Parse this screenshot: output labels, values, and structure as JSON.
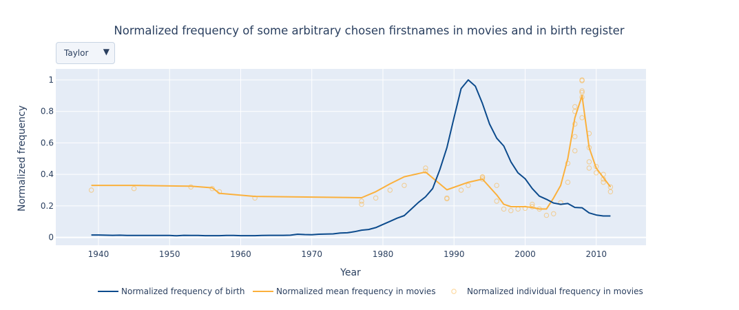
{
  "chart_data": {
    "type": "line",
    "title": "Normalized frequency of some arbitrary chosen firstnames in movies and in birth register",
    "xlabel": "Year",
    "ylabel": "Normalized frequency",
    "xlim": [
      1934,
      2017
    ],
    "ylim": [
      -0.05,
      1.07
    ],
    "xticks": [
      1940,
      1950,
      1960,
      1970,
      1980,
      1990,
      2000,
      2010
    ],
    "yticks": [
      0,
      0.2,
      0.4,
      0.6,
      0.8,
      1
    ],
    "ytick_labels": [
      "0",
      "0.2",
      "0.4",
      "0.6",
      "0.8",
      "1"
    ],
    "grid": true,
    "legend_position": "bottom",
    "dropdown": {
      "selected": "Taylor"
    },
    "series": [
      {
        "name": "Normalized frequency of birth",
        "mode": "line",
        "color": "#0b4a8c",
        "x": [
          1939,
          1940,
          1941,
          1942,
          1943,
          1944,
          1945,
          1946,
          1947,
          1948,
          1949,
          1950,
          1951,
          1952,
          1953,
          1954,
          1955,
          1956,
          1957,
          1958,
          1959,
          1960,
          1961,
          1962,
          1963,
          1964,
          1965,
          1966,
          1967,
          1968,
          1969,
          1970,
          1971,
          1972,
          1973,
          1974,
          1975,
          1976,
          1977,
          1978,
          1979,
          1980,
          1981,
          1982,
          1983,
          1984,
          1985,
          1986,
          1987,
          1988,
          1989,
          1990,
          1991,
          1992,
          1993,
          1994,
          1995,
          1996,
          1997,
          1998,
          1999,
          2000,
          2001,
          2002,
          2003,
          2004,
          2005,
          2006,
          2007,
          2008,
          2009,
          2010,
          2011,
          2012
        ],
        "y": [
          0.015,
          0.015,
          0.014,
          0.013,
          0.014,
          0.012,
          0.012,
          0.012,
          0.012,
          0.012,
          0.012,
          0.012,
          0.01,
          0.013,
          0.012,
          0.012,
          0.011,
          0.011,
          0.011,
          0.012,
          0.012,
          0.011,
          0.011,
          0.011,
          0.012,
          0.013,
          0.013,
          0.013,
          0.014,
          0.02,
          0.018,
          0.017,
          0.02,
          0.021,
          0.022,
          0.028,
          0.029,
          0.036,
          0.046,
          0.05,
          0.062,
          0.082,
          0.102,
          0.122,
          0.138,
          0.18,
          0.222,
          0.258,
          0.31,
          0.43,
          0.57,
          0.76,
          0.945,
          1.0,
          0.96,
          0.85,
          0.72,
          0.63,
          0.58,
          0.48,
          0.41,
          0.372,
          0.31,
          0.262,
          0.242,
          0.218,
          0.21,
          0.215,
          0.19,
          0.188,
          0.155,
          0.142,
          0.136,
          0.136
        ]
      },
      {
        "name": "Normalized mean frequency in movies",
        "mode": "line",
        "color": "#fbb03b",
        "x": [
          1939,
          1945,
          1953,
          1956,
          1957,
          1962,
          1977,
          1979,
          1981,
          1983,
          1986,
          1989,
          1992,
          1994,
          1996,
          1997,
          1998,
          1999,
          2000,
          2001,
          2002,
          2003,
          2004,
          2005,
          2006,
          2007,
          2008,
          2009,
          2010,
          2011,
          2012
        ],
        "y": [
          0.33,
          0.33,
          0.325,
          0.315,
          0.28,
          0.26,
          0.252,
          0.29,
          0.34,
          0.385,
          0.415,
          0.302,
          0.35,
          0.37,
          0.27,
          0.21,
          0.195,
          0.195,
          0.195,
          0.19,
          0.18,
          0.18,
          0.25,
          0.33,
          0.5,
          0.76,
          0.9,
          0.57,
          0.44,
          0.38,
          0.32
        ]
      },
      {
        "name": "Normalized individual frequency in movies",
        "mode": "markers",
        "color": "#fbb03b",
        "x": [
          1939,
          1945,
          1953,
          1956,
          1957,
          1962,
          1977,
          1977,
          1979,
          1981,
          1983,
          1986,
          1986,
          1989,
          1989,
          1991,
          1992,
          1994,
          1994,
          1994,
          1996,
          1996,
          1997,
          1998,
          1999,
          2000,
          2001,
          2001,
          2002,
          2003,
          2004,
          2005,
          2006,
          2006,
          2007,
          2007,
          2007,
          2007,
          2007,
          2008,
          2008,
          2008,
          2008,
          2008,
          2008,
          2009,
          2009,
          2009,
          2009,
          2010,
          2010,
          2011,
          2011,
          2011,
          2012,
          2012
        ],
        "y": [
          0.3,
          0.31,
          0.32,
          0.31,
          0.29,
          0.25,
          0.23,
          0.21,
          0.25,
          0.3,
          0.33,
          0.44,
          0.42,
          0.25,
          0.245,
          0.3,
          0.33,
          0.38,
          0.385,
          0.37,
          0.33,
          0.23,
          0.18,
          0.17,
          0.18,
          0.185,
          0.21,
          0.195,
          0.18,
          0.14,
          0.15,
          0.22,
          0.47,
          0.35,
          0.83,
          0.8,
          0.72,
          0.64,
          0.55,
          1.0,
          0.995,
          0.93,
          0.92,
          0.89,
          0.76,
          0.66,
          0.57,
          0.48,
          0.44,
          0.45,
          0.41,
          0.4,
          0.37,
          0.35,
          0.32,
          0.29
        ]
      }
    ]
  }
}
